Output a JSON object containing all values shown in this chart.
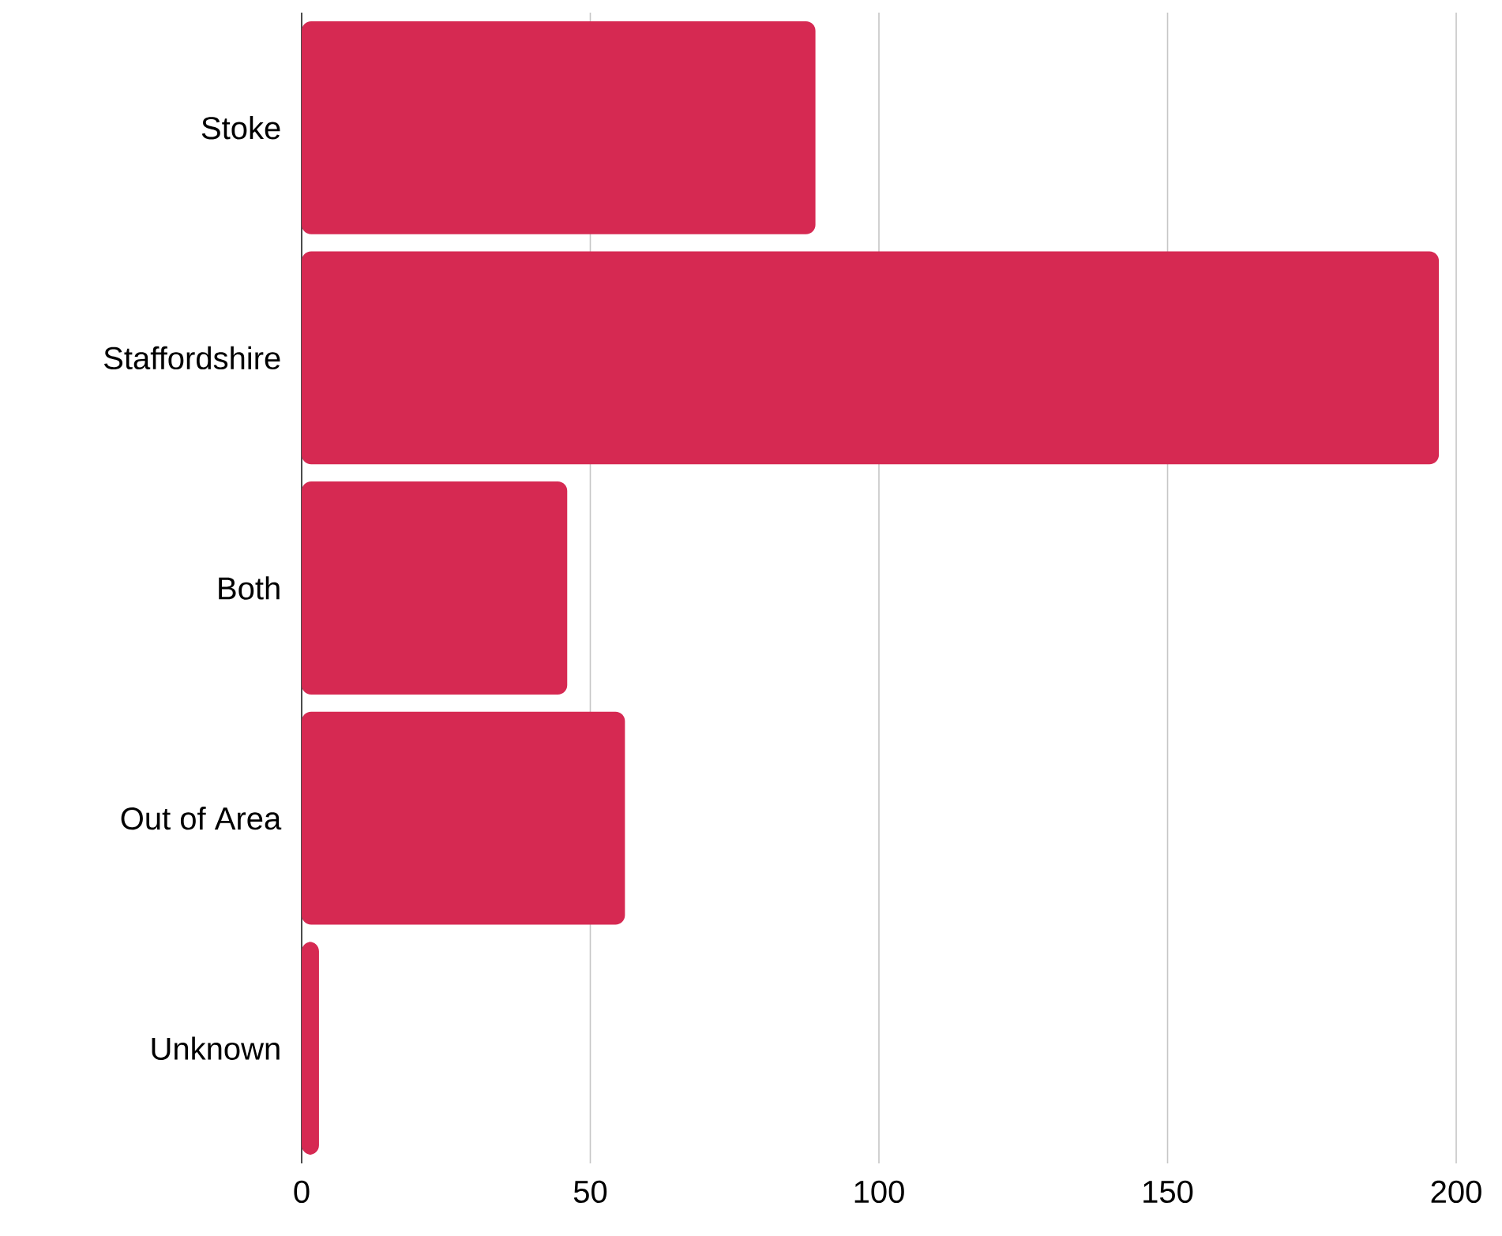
{
  "chart_data": {
    "type": "bar",
    "orientation": "horizontal",
    "categories": [
      "Stoke",
      "Staffordshire",
      "Both",
      "Out of Area",
      "Unknown"
    ],
    "values": [
      89,
      197,
      46,
      56,
      3
    ],
    "color": "#d62952",
    "xlim": [
      0,
      200
    ],
    "xticks": [
      0,
      50,
      100,
      150,
      200
    ],
    "grid": "x"
  }
}
